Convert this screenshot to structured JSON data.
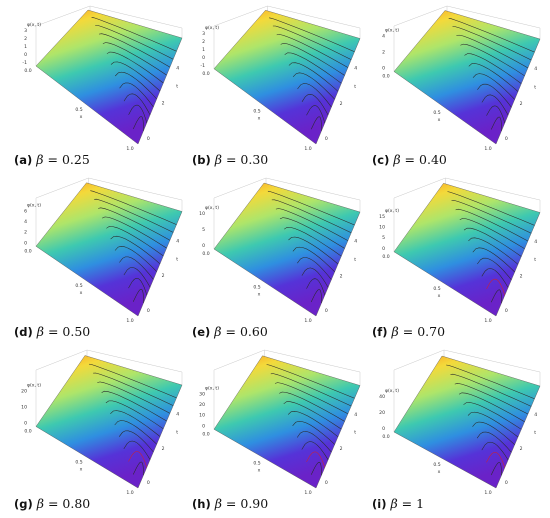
{
  "figure": {
    "panels": [
      {
        "letter": "(a)",
        "symbol": "β",
        "equals": "=",
        "beta": "0.25",
        "zlabel": "φ(x, t)",
        "xlabel": "x",
        "tlabel": "t",
        "z_ticks": [
          "3",
          "2",
          "1",
          "0",
          "-1"
        ],
        "x_ticks": [
          "0.0",
          "0.5",
          "1.0"
        ],
        "t_ticks": [
          "0",
          "2",
          "4"
        ]
      },
      {
        "letter": "(b)",
        "symbol": "β",
        "equals": "=",
        "beta": "0.30",
        "zlabel": "φ(x, t)",
        "xlabel": "x",
        "tlabel": "t",
        "z_ticks": [
          "3",
          "2",
          "1",
          "0",
          "-1"
        ],
        "x_ticks": [
          "0.0",
          "0.5",
          "1.0"
        ],
        "t_ticks": [
          "0",
          "2",
          "4"
        ]
      },
      {
        "letter": "(c)",
        "symbol": "β",
        "equals": "=",
        "beta": "0.40",
        "zlabel": "φ(x, t)",
        "xlabel": "x",
        "tlabel": "t",
        "z_ticks": [
          "4",
          "2",
          "0"
        ],
        "x_ticks": [
          "0.0",
          "0.5",
          "1.0"
        ],
        "t_ticks": [
          "0",
          "2",
          "4"
        ]
      },
      {
        "letter": "(d)",
        "symbol": "β",
        "equals": "=",
        "beta": "0.50",
        "zlabel": "φ(x, t)",
        "xlabel": "x",
        "tlabel": "t",
        "z_ticks": [
          "6",
          "4",
          "2",
          "0"
        ],
        "x_ticks": [
          "0.0",
          "0.5",
          "1.0"
        ],
        "t_ticks": [
          "0",
          "2",
          "4"
        ]
      },
      {
        "letter": "(e)",
        "symbol": "β",
        "equals": "=",
        "beta": "0.60",
        "zlabel": "φ(x, t)",
        "xlabel": "x",
        "tlabel": "t",
        "z_ticks": [
          "10",
          "5",
          "0"
        ],
        "x_ticks": [
          "0.0",
          "0.5",
          "1.0"
        ],
        "t_ticks": [
          "0",
          "2",
          "4"
        ]
      },
      {
        "letter": "(f)",
        "symbol": "β",
        "equals": "=",
        "beta": "0.70",
        "zlabel": "φ(x, t)",
        "xlabel": "x",
        "tlabel": "t",
        "z_ticks": [
          "15",
          "10",
          "5",
          "0"
        ],
        "x_ticks": [
          "0.0",
          "0.5",
          "1.0"
        ],
        "t_ticks": [
          "0",
          "2",
          "4"
        ]
      },
      {
        "letter": "(g)",
        "symbol": "β",
        "equals": "=",
        "beta": "0.80",
        "zlabel": "φ(x, t)",
        "xlabel": "x",
        "tlabel": "t",
        "z_ticks": [
          "20",
          "10",
          "0"
        ],
        "x_ticks": [
          "0.0",
          "0.5",
          "1.0"
        ],
        "t_ticks": [
          "0",
          "2",
          "4"
        ]
      },
      {
        "letter": "(h)",
        "symbol": "β",
        "equals": "=",
        "beta": "0.90",
        "zlabel": "φ(x, t)",
        "xlabel": "x",
        "tlabel": "t",
        "z_ticks": [
          "30",
          "20",
          "10",
          "0"
        ],
        "x_ticks": [
          "0.0",
          "0.5",
          "1.0"
        ],
        "t_ticks": [
          "0",
          "2",
          "4"
        ]
      },
      {
        "letter": "(i)",
        "symbol": "β",
        "equals": "=",
        "beta": "1",
        "zlabel": "φ(x, t)",
        "xlabel": "x",
        "tlabel": "t",
        "z_ticks": [
          "40",
          "20",
          "0"
        ],
        "x_ticks": [
          "0.0",
          "0.5",
          "1.0"
        ],
        "t_ticks": [
          "0",
          "2",
          "4"
        ]
      }
    ]
  },
  "chart_data": {
    "type": "surface",
    "surface_colormap": [
      "#ff8c1a",
      "#f4d93a",
      "#aee56a",
      "#3ec9b0",
      "#2f8fe0",
      "#5533d8",
      "#6a22c8"
    ],
    "contour_color": "#2a2a2a",
    "red_contour_color": "#cc2233",
    "x_range": [
      0,
      1
    ],
    "t_range": [
      0,
      5
    ],
    "betas": [
      0.25,
      0.3,
      0.4,
      0.5,
      0.6,
      0.7,
      0.8,
      0.9,
      1
    ]
  }
}
